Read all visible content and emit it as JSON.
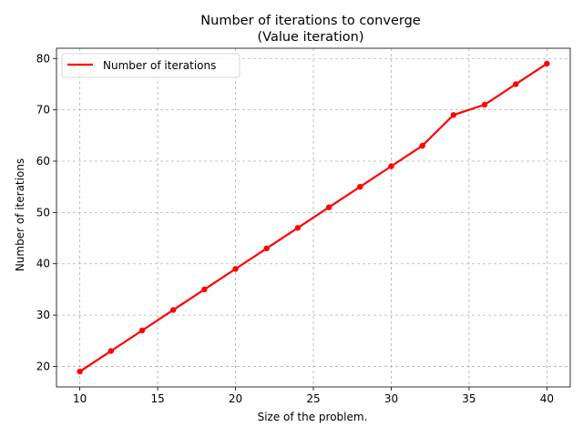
{
  "chart_data": {
    "type": "line",
    "title": "Number of iterations to converge",
    "subtitle": "(Value iteration)",
    "xlabel": "Size of the problem.",
    "ylabel": "Number of iterations",
    "xlim": [
      8.5,
      41.5
    ],
    "ylim": [
      16,
      82
    ],
    "xticks": [
      10,
      15,
      20,
      25,
      30,
      35,
      40
    ],
    "yticks": [
      20,
      30,
      40,
      50,
      60,
      70,
      80
    ],
    "grid": true,
    "legend_position": "upper-left",
    "series": [
      {
        "name": "Number of iterations",
        "color": "#ff0000",
        "marker": "circle",
        "x": [
          10,
          12,
          14,
          16,
          18,
          20,
          22,
          24,
          26,
          28,
          30,
          32,
          34,
          36,
          38,
          40
        ],
        "y": [
          19,
          23,
          27,
          31,
          35,
          39,
          43,
          47,
          51,
          55,
          59,
          63,
          69,
          71,
          75,
          79
        ]
      }
    ]
  }
}
